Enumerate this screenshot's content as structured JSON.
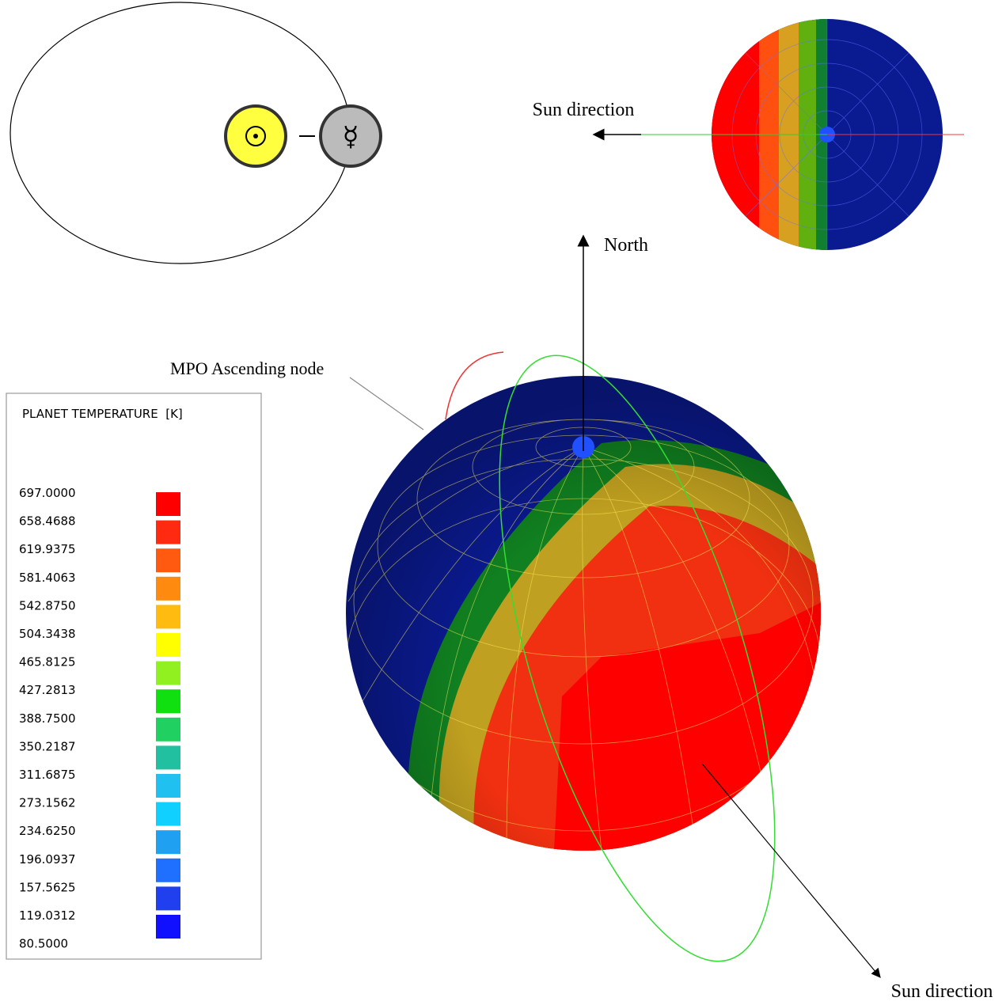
{
  "orbit_diagram": {
    "planet_symbol": "☿"
  },
  "top_view": {
    "label": "Sun direction"
  },
  "main_view": {
    "north_label": "North",
    "node_label": "MPO Ascending node",
    "sun_label": "Sun direction"
  },
  "legend": {
    "title": "PLANET TEMPERATURE  [K]",
    "labels": [
      "697.0000",
      "658.4688",
      "619.9375",
      "581.4063",
      "542.8750",
      "504.3438",
      "465.8125",
      "427.2813",
      "388.7500",
      "350.2187",
      "311.6875",
      "273.1562",
      "234.6250",
      "196.0937",
      "157.5625",
      "119.0312",
      "80.5000"
    ],
    "colors": [
      "#ff0000",
      "#ff2a10",
      "#ff5a10",
      "#ff8a10",
      "#ffbb10",
      "#ffff00",
      "#90f020",
      "#10e010",
      "#20d060",
      "#20c0a0",
      "#20c0f0",
      "#10d0ff",
      "#20a0f0",
      "#2070ff",
      "#2040f0",
      "#1010ff"
    ]
  }
}
